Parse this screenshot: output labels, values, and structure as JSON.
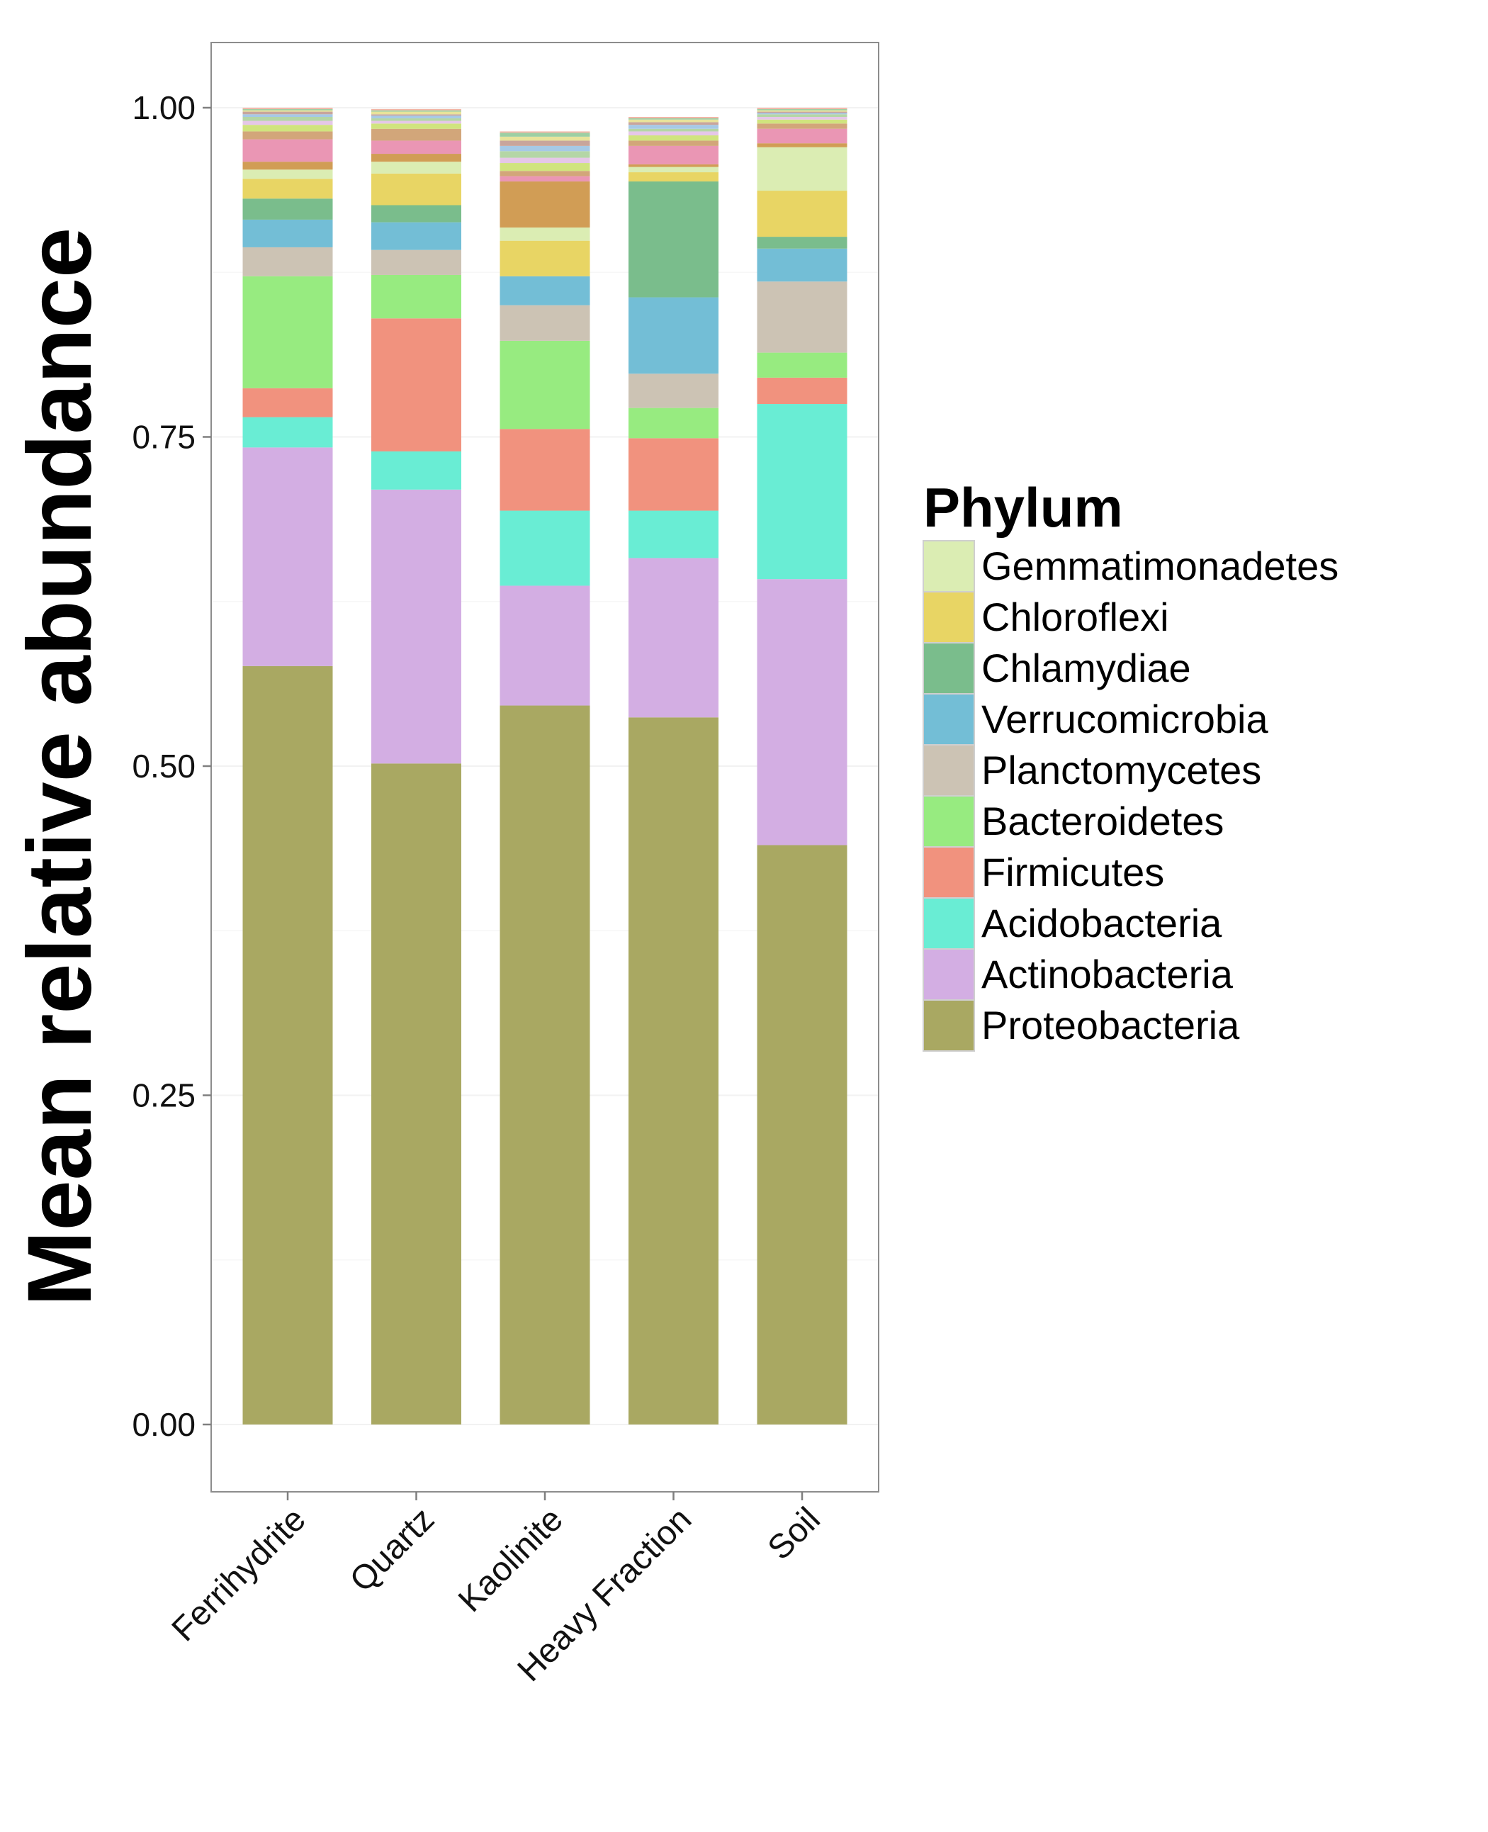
{
  "chart_data": {
    "type": "bar",
    "stacked": true,
    "title": "",
    "xlabel": "",
    "ylabel": "Mean relative abundance",
    "ylim": [
      -0.05,
      1.05
    ],
    "yticks": [
      0.0,
      0.25,
      0.5,
      0.75,
      1.0
    ],
    "ytick_labels": [
      "0.00",
      "0.25",
      "0.50",
      "0.75",
      "1.00"
    ],
    "grid": true,
    "legend_position": "right",
    "legend_title": "Phylum",
    "categories": [
      "Ferrihydrite",
      "Quartz",
      "Kaolinite",
      "Heavy Fraction",
      "Soil"
    ],
    "series": [
      {
        "name": "Proteobacteria",
        "color": "#A9A862",
        "values": [
          0.576,
          0.502,
          0.546,
          0.537,
          0.44
        ]
      },
      {
        "name": "Actinobacteria",
        "color": "#D3AEE3",
        "values": [
          0.166,
          0.208,
          0.091,
          0.121,
          0.202
        ]
      },
      {
        "name": "Acidobacteria",
        "color": "#69EDD4",
        "values": [
          0.023,
          0.029,
          0.057,
          0.036,
          0.133
        ]
      },
      {
        "name": "Firmicutes",
        "color": "#F1927E",
        "values": [
          0.022,
          0.101,
          0.062,
          0.055,
          0.02
        ]
      },
      {
        "name": "Bacteroidetes",
        "color": "#97EB80",
        "values": [
          0.085,
          0.033,
          0.067,
          0.023,
          0.019
        ]
      },
      {
        "name": "Planctomycetes",
        "color": "#CCC3B4",
        "values": [
          0.022,
          0.019,
          0.027,
          0.026,
          0.054
        ]
      },
      {
        "name": "Verrucomicrobia",
        "color": "#73BED6",
        "values": [
          0.021,
          0.021,
          0.022,
          0.058,
          0.025
        ]
      },
      {
        "name": "Chlamydiae",
        "color": "#7ABD8C",
        "values": [
          0.016,
          0.013,
          0.0,
          0.088,
          0.009
        ]
      },
      {
        "name": "Chloroflexi",
        "color": "#E8D564",
        "values": [
          0.015,
          0.024,
          0.027,
          0.007,
          0.035
        ]
      },
      {
        "name": "Gemmatimonadetes",
        "color": "#DBEDB3",
        "values": [
          0.007,
          0.009,
          0.01,
          0.004,
          0.033
        ]
      }
    ],
    "minor_taxa": [
      {
        "color": "#D19D55",
        "values": [
          0.006,
          0.006,
          0.035,
          0.002,
          0.003
        ]
      },
      {
        "color": "#EA96B4",
        "values": [
          0.017,
          0.01,
          0.004,
          0.014,
          0.011
        ]
      },
      {
        "color": "#D2A67A",
        "values": [
          0.006,
          0.009,
          0.004,
          0.004,
          0.004
        ]
      },
      {
        "color": "#D0E47E",
        "values": [
          0.005,
          0.004,
          0.006,
          0.004,
          0.003
        ]
      },
      {
        "color": "#E5C7E8",
        "values": [
          0.003,
          0.002,
          0.004,
          0.003,
          0.002
        ]
      },
      {
        "color": "#B4D6A6",
        "values": [
          0.003,
          0.002,
          0.005,
          0.002,
          0.002
        ]
      },
      {
        "color": "#A6C9E6",
        "values": [
          0.002,
          0.002,
          0.004,
          0.003,
          0.001
        ]
      },
      {
        "color": "#C8A59C",
        "values": [
          0.002,
          0.001,
          0.004,
          0.002,
          0.001
        ]
      },
      {
        "color": "#E8E39A",
        "values": [
          0.001,
          0.002,
          0.003,
          0.002,
          0.001
        ]
      },
      {
        "color": "#9DCFA3",
        "values": [
          0.001,
          0.001,
          0.003,
          0.001,
          0.001
        ]
      },
      {
        "color": "#F2B4A4",
        "values": [
          0.001,
          0.001,
          0.001,
          0.001,
          0.001
        ]
      }
    ]
  }
}
